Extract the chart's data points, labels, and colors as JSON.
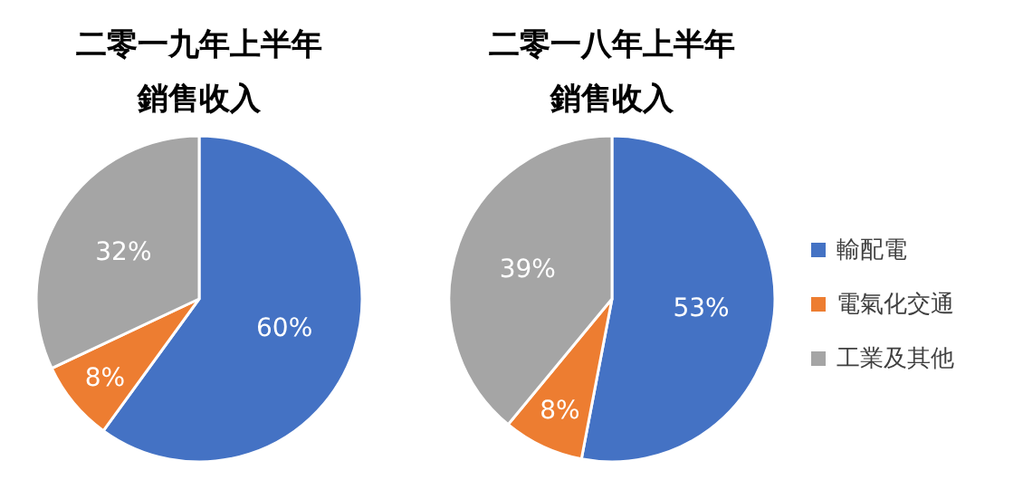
{
  "chart_data": [
    {
      "type": "pie",
      "title": "二零一九年上半年",
      "subtitle": "銷售收入",
      "categories": [
        null,
        null,
        null
      ],
      "values": [
        60,
        8,
        32
      ],
      "value_labels": [
        "60%",
        "8%",
        "32%"
      ],
      "colors": [
        "#4472c4",
        "#ed7d31",
        "#a5a5a5"
      ]
    },
    {
      "type": "pie",
      "title": "二零一八年上半年",
      "subtitle": "銷售收入",
      "categories": [
        "輸配電",
        "電氣化交通",
        "工業及其他"
      ],
      "values": [
        53,
        8,
        39
      ],
      "value_labels": [
        "53%",
        "8%",
        "39%"
      ],
      "colors": [
        "#4472c4",
        "#ed7d31",
        "#a5a5a5"
      ],
      "legend": "right"
    }
  ]
}
